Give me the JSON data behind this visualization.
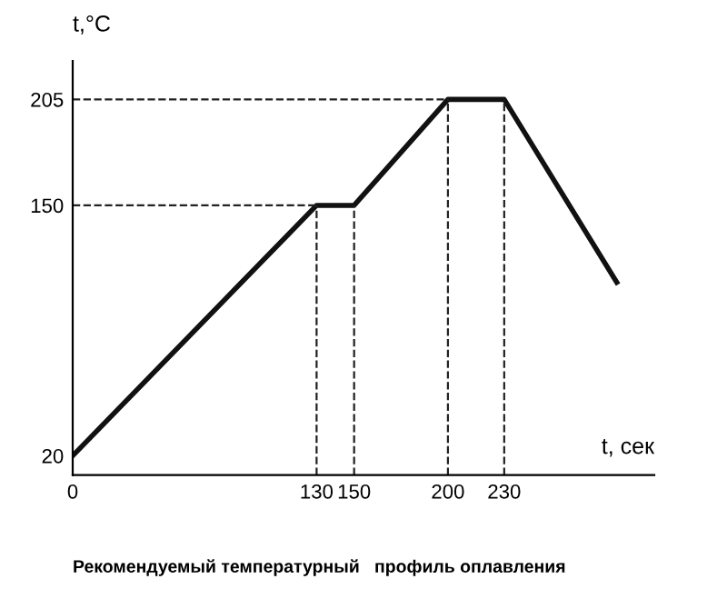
{
  "chart_data": {
    "type": "line",
    "title": "Рекомендуемый температурный   профиль оплавления",
    "xlabel": "t, сек",
    "ylabel": "t,°C",
    "x": [
      0,
      130,
      150,
      200,
      230,
      290
    ],
    "series": [
      {
        "color": "#111111",
        "values": [
          20,
          150,
          150,
          205,
          205,
          110
        ]
      }
    ],
    "xlim": [
      0,
      310
    ],
    "ylim": [
      10,
      225
    ],
    "xticks": [
      0,
      130,
      150,
      200,
      230
    ],
    "yticks": [
      20,
      150,
      205
    ],
    "ref_lines": [
      {
        "axis": "x",
        "value": 130,
        "line_style": "dashed",
        "color": "#222222"
      },
      {
        "axis": "x",
        "value": 150,
        "line_style": "dashed",
        "color": "#222222"
      },
      {
        "axis": "x",
        "value": 200,
        "line_style": "dashed",
        "color": "#222222"
      },
      {
        "axis": "x",
        "value": 230,
        "line_style": "dashed",
        "color": "#222222"
      },
      {
        "axis": "y",
        "value": 150,
        "line_style": "dashed",
        "color": "#222222"
      },
      {
        "axis": "y",
        "value": 205,
        "line_style": "dashed",
        "color": "#222222"
      }
    ],
    "grid": false,
    "legend": false,
    "marker": "none",
    "line_style": "solid"
  }
}
